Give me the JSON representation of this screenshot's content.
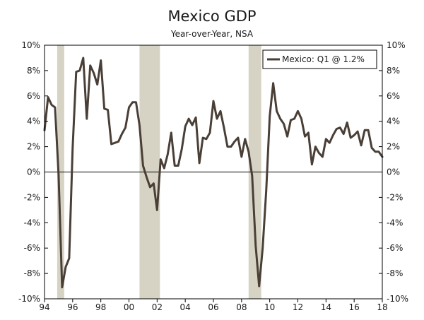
{
  "chart_data": {
    "type": "line",
    "title": "Mexico GDP",
    "subtitle": "Year-over-Year, NSA",
    "xlabel": "",
    "ylabel": "",
    "xlim": [
      1994.0,
      2018.0
    ],
    "ylim": [
      -10,
      10
    ],
    "x_ticks": [
      {
        "value": 1994,
        "label": "94"
      },
      {
        "value": 1996,
        "label": "96"
      },
      {
        "value": 1998,
        "label": "98"
      },
      {
        "value": 2000,
        "label": "00"
      },
      {
        "value": 2002,
        "label": "02"
      },
      {
        "value": 2004,
        "label": "04"
      },
      {
        "value": 2006,
        "label": "06"
      },
      {
        "value": 2008,
        "label": "08"
      },
      {
        "value": 2010,
        "label": "10"
      },
      {
        "value": 2012,
        "label": "12"
      },
      {
        "value": 2014,
        "label": "14"
      },
      {
        "value": 2016,
        "label": "16"
      },
      {
        "value": 2018,
        "label": "18"
      }
    ],
    "y_ticks": [
      {
        "value": 10,
        "label": "10%"
      },
      {
        "value": 8,
        "label": "8%"
      },
      {
        "value": 6,
        "label": "6%"
      },
      {
        "value": 4,
        "label": "4%"
      },
      {
        "value": 2,
        "label": "2%"
      },
      {
        "value": 0,
        "label": "0%"
      },
      {
        "value": -2,
        "label": "-2%"
      },
      {
        "value": -4,
        "label": "-4%"
      },
      {
        "value": -6,
        "label": "-6%"
      },
      {
        "value": -8,
        "label": "-8%"
      },
      {
        "value": -10,
        "label": "-10%"
      }
    ],
    "recessions": [
      {
        "start": 1994.9,
        "end": 1995.4
      },
      {
        "start": 2000.75,
        "end": 2002.2
      },
      {
        "start": 2008.5,
        "end": 2009.4
      }
    ],
    "legend": {
      "position": "top-right",
      "label": "Mexico: Q1 @ 1.2%"
    },
    "colors": {
      "line": "#4a3f37",
      "recession": "#d6d3c4",
      "zero_line": "#000000",
      "axis": "#000000"
    },
    "series": [
      {
        "name": "Mexico: Q1 @ 1.2%",
        "x": [
          1994.0,
          1994.25,
          1994.5,
          1994.75,
          1995.0,
          1995.25,
          1995.5,
          1995.75,
          1996.0,
          1996.25,
          1996.5,
          1996.75,
          1997.0,
          1997.25,
          1997.5,
          1997.75,
          1998.0,
          1998.25,
          1998.5,
          1998.75,
          1999.0,
          1999.25,
          1999.5,
          1999.75,
          2000.0,
          2000.25,
          2000.5,
          2000.75,
          2001.0,
          2001.25,
          2001.5,
          2001.75,
          2002.0,
          2002.25,
          2002.5,
          2002.75,
          2003.0,
          2003.25,
          2003.5,
          2003.75,
          2004.0,
          2004.25,
          2004.5,
          2004.75,
          2005.0,
          2005.25,
          2005.5,
          2005.75,
          2006.0,
          2006.25,
          2006.5,
          2006.75,
          2007.0,
          2007.25,
          2007.5,
          2007.75,
          2008.0,
          2008.25,
          2008.5,
          2008.75,
          2009.0,
          2009.25,
          2009.5,
          2009.75,
          2010.0,
          2010.25,
          2010.5,
          2010.75,
          2011.0,
          2011.25,
          2011.5,
          2011.75,
          2012.0,
          2012.25,
          2012.5,
          2012.75,
          2013.0,
          2013.25,
          2013.5,
          2013.75,
          2014.0,
          2014.25,
          2014.5,
          2014.75,
          2015.0,
          2015.25,
          2015.5,
          2015.75,
          2016.0,
          2016.25,
          2016.5,
          2016.75,
          2017.0,
          2017.25,
          2017.5,
          2017.75,
          2018.0
        ],
        "values": [
          3.3,
          5.9,
          5.3,
          5.1,
          -0.2,
          -9.1,
          -7.5,
          -6.8,
          1.9,
          7.9,
          8.0,
          9.0,
          4.2,
          8.4,
          7.8,
          6.9,
          8.8,
          5.0,
          4.9,
          2.2,
          2.3,
          2.4,
          3.0,
          3.5,
          5.1,
          5.5,
          5.5,
          3.7,
          0.5,
          -0.4,
          -1.2,
          -0.9,
          -3.0,
          1.0,
          0.3,
          1.4,
          3.1,
          0.5,
          0.5,
          1.8,
          3.6,
          4.2,
          3.7,
          4.3,
          0.7,
          2.7,
          2.6,
          3.1,
          5.6,
          4.2,
          4.8,
          3.5,
          2.0,
          2.0,
          2.4,
          2.7,
          1.2,
          2.6,
          1.6,
          -0.3,
          -5.8,
          -9.0,
          -6.0,
          -1.5,
          4.4,
          7.0,
          4.8,
          4.2,
          3.8,
          2.8,
          4.1,
          4.2,
          4.8,
          4.2,
          2.8,
          3.1,
          0.6,
          2.0,
          1.5,
          1.2,
          2.6,
          2.3,
          2.9,
          3.4,
          3.5,
          3.0,
          3.9,
          2.7,
          2.9,
          3.2,
          2.1,
          3.3,
          3.3,
          1.9,
          1.6,
          1.6,
          1.2
        ]
      }
    ]
  }
}
